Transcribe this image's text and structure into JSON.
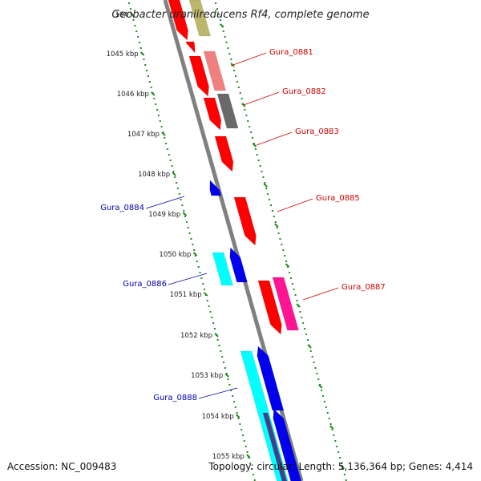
{
  "title": "Geobacter uraniireducens Rf4, complete genome",
  "footer": {
    "accession": "Accession: NC_009483",
    "topology": "Topology: circular; Length: 5,136,364 bp; Genes: 4,414"
  },
  "colors": {
    "backbone": "#808080",
    "tick": "#228b22",
    "red": "#ff0000",
    "pink": "#f08080",
    "gray": "#696969",
    "olive": "#bdb76b",
    "magenta": "#ff1493",
    "blue": "#0000ee",
    "cyan": "#00ffff",
    "slate": "#483d8b",
    "label_forward": "#cc0000",
    "label_reverse": "#0000aa"
  },
  "kbp_labels": [
    "104",
    "1045 kbp",
    "1046 kbp",
    "1047 kbp",
    "1048 kbp",
    "1049 kbp",
    "1050 kbp",
    "1051 kbp",
    "1052 kbp",
    "1053 kbp",
    "1054 kbp",
    "1055 kbp"
  ],
  "gene_labels": [
    {
      "text": "Gura_0881",
      "strand": "forward"
    },
    {
      "text": "Gura_0882",
      "strand": "forward"
    },
    {
      "text": "Gura_0883",
      "strand": "forward"
    },
    {
      "text": "Gura_0884",
      "strand": "reverse"
    },
    {
      "text": "Gura_0885",
      "strand": "forward"
    },
    {
      "text": "Gura_0886",
      "strand": "reverse"
    },
    {
      "text": "Gura_0887",
      "strand": "forward"
    },
    {
      "text": "Gura_0888",
      "strand": "reverse"
    }
  ]
}
